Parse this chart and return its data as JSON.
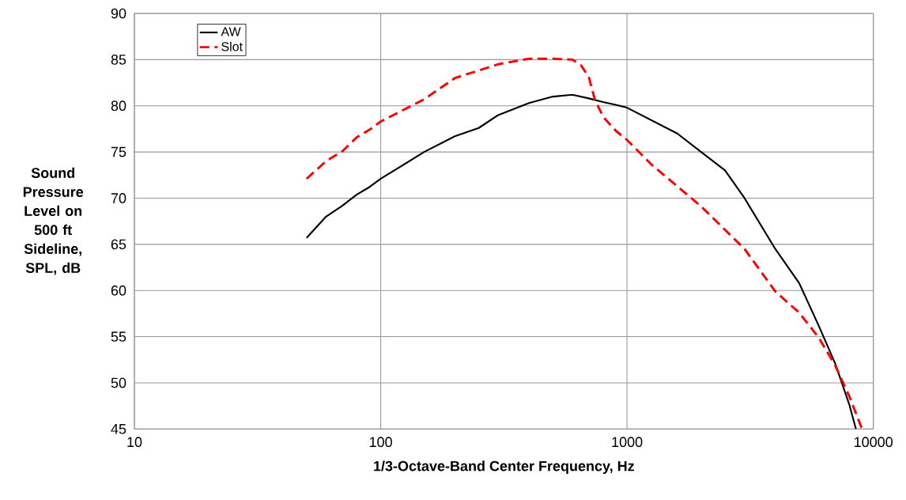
{
  "chart_data": {
    "type": "line",
    "xlabel": "1/3-Octave-Band Center Frequency, Hz",
    "ylabel": "Sound Pressure Level on 500 ft Sideline, SPL, dB",
    "xlim": [
      10,
      10000
    ],
    "ylim": [
      45,
      90
    ],
    "xticks": [
      10,
      100,
      1000,
      10000
    ],
    "yticks": [
      45,
      50,
      55,
      60,
      65,
      70,
      75,
      80,
      85,
      90
    ],
    "log": "x",
    "grid": true,
    "legend": "top left",
    "series": [
      {
        "name": "AW",
        "color": "#000000",
        "line_style": "solid",
        "x": [
          50,
          60,
          70,
          80,
          90,
          100,
          150,
          200,
          250,
          300,
          400,
          500,
          600,
          700,
          800,
          900,
          1000,
          1600,
          2000,
          2500,
          3000,
          4000,
          5000,
          6000,
          7000,
          8000,
          8500
        ],
        "values": [
          65.7,
          68.0,
          69.2,
          70.4,
          71.2,
          72.1,
          75.0,
          76.7,
          77.6,
          79.0,
          80.3,
          81.0,
          81.2,
          80.8,
          80.4,
          80.1,
          79.8,
          77.0,
          75.0,
          73.0,
          70.0,
          64.5,
          60.8,
          56.2,
          52.1,
          47.6,
          45.0
        ]
      },
      {
        "name": "Slot",
        "color": "#ff0000",
        "line_style": "dashed",
        "x": [
          50,
          60,
          70,
          80,
          90,
          100,
          150,
          200,
          300,
          400,
          500,
          600,
          650,
          700,
          740,
          800,
          900,
          1000,
          1250,
          2000,
          3000,
          4000,
          5000,
          6000,
          7000,
          8000,
          9000
        ],
        "values": [
          72.1,
          74.0,
          75.1,
          76.6,
          77.4,
          78.3,
          80.7,
          83.0,
          84.5,
          85.1,
          85.1,
          85.0,
          84.4,
          83.1,
          80.7,
          78.8,
          77.3,
          76.3,
          73.7,
          69.1,
          64.5,
          59.9,
          57.6,
          54.9,
          51.9,
          48.5,
          45.0
        ]
      }
    ]
  }
}
